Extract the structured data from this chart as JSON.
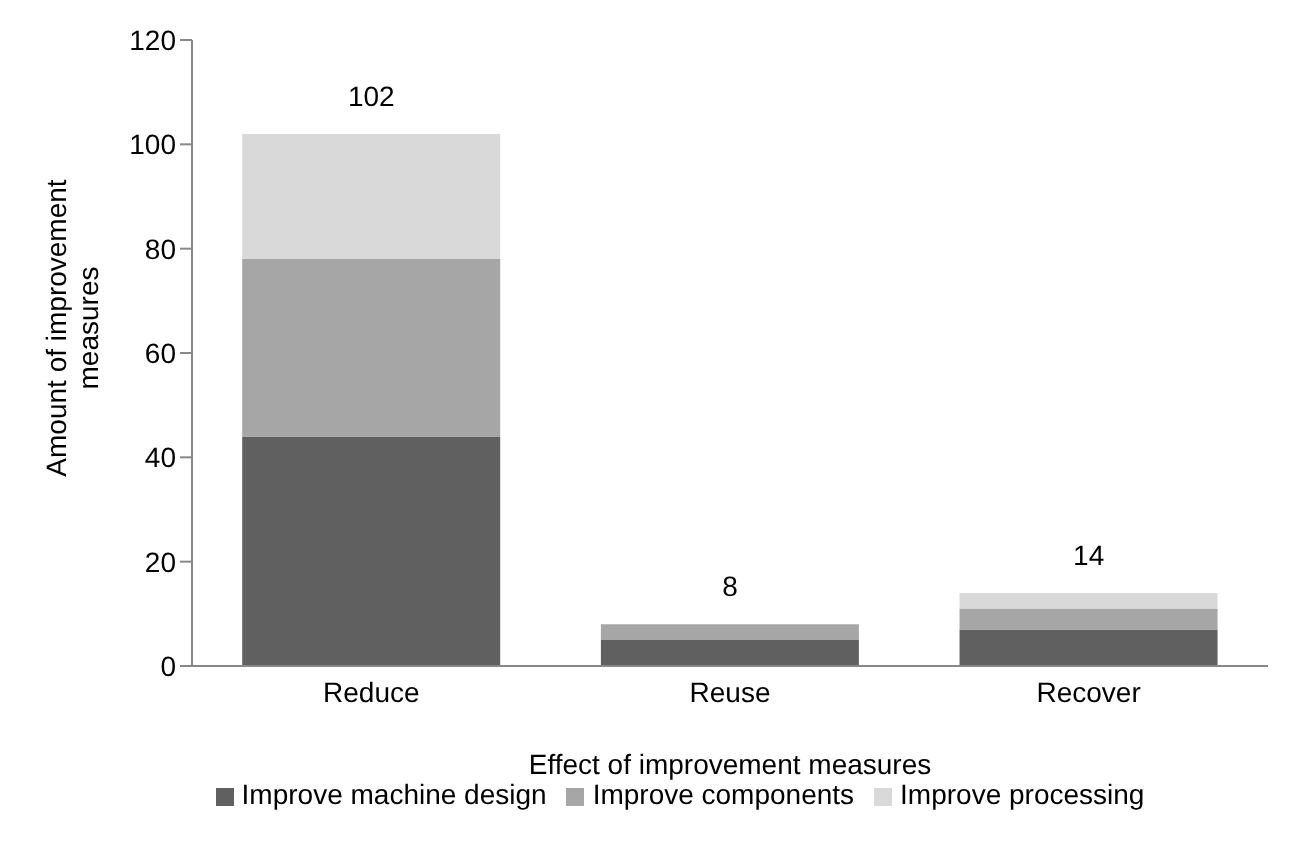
{
  "chart_data": {
    "type": "bar",
    "stacked": true,
    "xlabel": "Effect of improvement measures",
    "ylabel": "Amount of improvement measures",
    "categories": [
      "Reduce",
      "Reuse",
      "Recover"
    ],
    "series": [
      {
        "name": "Improve machine design",
        "color": "#606060",
        "values": [
          44,
          5,
          7
        ]
      },
      {
        "name": "Improve components",
        "color": "#a6a6a6",
        "values": [
          34,
          3,
          4
        ]
      },
      {
        "name": "Improve processing",
        "color": "#d9d9d9",
        "values": [
          24,
          0,
          3
        ]
      }
    ],
    "totals": [
      "102",
      "8",
      "14"
    ],
    "ylim": [
      0,
      120
    ],
    "yticks": [
      0,
      20,
      40,
      60,
      80,
      100,
      120
    ],
    "grid": false,
    "legend": "bottom"
  }
}
